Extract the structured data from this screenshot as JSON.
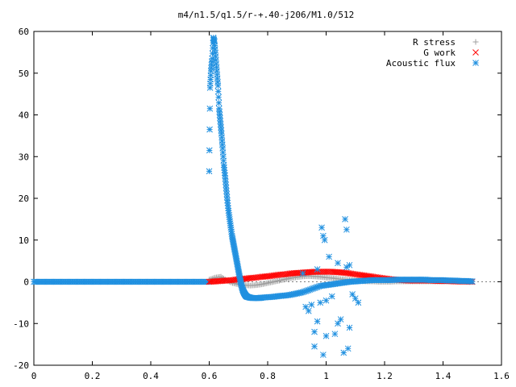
{
  "chart_data": {
    "type": "scatter",
    "title": "m4/n1.5/q1.5/r-+.40-j206/M1.0/512",
    "xlabel": "",
    "ylabel": "",
    "xlim": [
      0,
      1.6
    ],
    "ylim": [
      -20,
      60
    ],
    "xticks": [
      0,
      0.2,
      0.4,
      0.6,
      0.8,
      1,
      1.2,
      1.4,
      1.6
    ],
    "xtick_labels": [
      "0",
      "0.2",
      "0.4",
      "0.6",
      "0.8",
      "1",
      "1.2",
      "1.4",
      "1.6"
    ],
    "yticks": [
      -20,
      -10,
      0,
      10,
      20,
      30,
      40,
      50,
      60
    ],
    "ytick_labels": [
      "-20",
      "-10",
      "0",
      "10",
      "20",
      "30",
      "40",
      "50",
      "60"
    ],
    "grid": false,
    "legend": "top-right",
    "series": [
      {
        "name": "R stress",
        "marker": "plus",
        "color": "#a0a0a0",
        "x": [
          0.6,
          0.62,
          0.64,
          0.66,
          0.68,
          0.7,
          0.72,
          0.74,
          0.76,
          0.78,
          0.8,
          0.82,
          0.84,
          0.86,
          0.88,
          0.9,
          0.92,
          0.94,
          0.96,
          0.98,
          1.0,
          1.02,
          1.04,
          1.06,
          1.08,
          1.1,
          1.12,
          1.14,
          1.16,
          1.18,
          1.2,
          1.22,
          1.24,
          1.26,
          1.28,
          1.3,
          1.32,
          1.34,
          1.36,
          1.38,
          1.4,
          1.42,
          1.44,
          1.46,
          1.48,
          1.5
        ],
        "y": [
          0.5,
          1.0,
          1.2,
          0.3,
          -0.3,
          -0.6,
          -0.8,
          -0.9,
          -0.8,
          -0.6,
          -0.3,
          0.0,
          0.3,
          0.6,
          0.9,
          1.1,
          1.3,
          1.4,
          1.3,
          1.2,
          1.0,
          0.9,
          0.7,
          0.6,
          0.4,
          0.3,
          0.2,
          0.1,
          0.1,
          0.0,
          0.0,
          0.0,
          0.1,
          0.1,
          0.1,
          0.1,
          0.1,
          0.1,
          0.1,
          0.1,
          0.1,
          0.1,
          0.1,
          0.0,
          0.0,
          0.0
        ]
      },
      {
        "name": "G work",
        "marker": "cross",
        "color": "#ff0000",
        "x": [
          0.6,
          0.62,
          0.64,
          0.66,
          0.68,
          0.7,
          0.72,
          0.74,
          0.76,
          0.78,
          0.8,
          0.82,
          0.84,
          0.86,
          0.88,
          0.9,
          0.92,
          0.94,
          0.96,
          0.98,
          1.0,
          1.02,
          1.04,
          1.06,
          1.08,
          1.1,
          1.12,
          1.14,
          1.16,
          1.18,
          1.2,
          1.22,
          1.24,
          1.26,
          1.28,
          1.3,
          1.32,
          1.34,
          1.36,
          1.38,
          1.4,
          1.42,
          1.44,
          1.46,
          1.48,
          1.5
        ],
        "y": [
          0.0,
          0.1,
          0.2,
          0.3,
          0.4,
          0.6,
          0.7,
          0.9,
          1.0,
          1.2,
          1.3,
          1.5,
          1.7,
          1.8,
          2.0,
          2.1,
          2.2,
          2.3,
          2.4,
          2.4,
          2.4,
          2.4,
          2.3,
          2.2,
          2.0,
          1.8,
          1.6,
          1.4,
          1.2,
          1.0,
          0.8,
          0.6,
          0.5,
          0.4,
          0.3,
          0.3,
          0.3,
          0.3,
          0.3,
          0.2,
          0.2,
          0.2,
          0.1,
          0.1,
          0.1,
          0.0
        ]
      },
      {
        "name": "Acoustic flux",
        "marker": "star",
        "color": "#2090e0",
        "x": [
          0.6,
          0.603,
          0.606,
          0.61,
          0.614,
          0.618,
          0.622,
          0.626,
          0.63,
          0.634,
          0.638,
          0.642,
          0.646,
          0.65,
          0.654,
          0.658,
          0.662,
          0.666,
          0.67,
          0.674,
          0.678,
          0.682,
          0.686,
          0.69,
          0.694,
          0.698,
          0.702,
          0.706,
          0.71,
          0.714,
          0.718,
          0.722,
          0.726,
          0.73,
          0.74,
          0.75,
          0.76,
          0.77,
          0.78,
          0.8,
          0.82,
          0.84,
          0.86,
          0.88,
          0.9,
          0.92,
          0.94,
          0.96,
          0.98,
          1.0,
          1.02,
          1.04,
          1.06,
          1.08,
          1.1,
          1.12,
          1.14,
          1.16,
          1.18,
          1.2,
          1.22,
          1.24,
          1.26,
          1.28,
          1.3,
          1.32,
          1.34,
          1.36,
          1.38,
          1.4,
          1.42,
          1.44,
          1.46,
          1.48,
          1.5,
          0.985,
          0.99,
          0.995,
          1.065,
          1.07,
          1.075,
          0.96,
          0.97,
          1.03,
          1.04,
          1.06,
          1.08,
          0.93,
          0.94,
          0.95,
          0.98,
          1.0,
          1.02,
          1.05,
          1.09,
          1.1,
          0.92,
          0.97,
          1.01,
          1.04,
          1.07,
          1.08,
          0.99,
          1.0,
          0.96,
          1.11
        ],
        "y": [
          26.5,
          46.5,
          50.5,
          53.5,
          58.5,
          57.5,
          54.0,
          50.5,
          47.0,
          41.5,
          38.5,
          35.5,
          32.0,
          28.0,
          25.5,
          22.5,
          19.5,
          17.0,
          15.0,
          13.0,
          11.0,
          9.5,
          8.0,
          6.5,
          5.0,
          3.5,
          2.0,
          0.5,
          -0.8,
          -1.8,
          -2.5,
          -3.0,
          -3.4,
          -3.6,
          -3.8,
          -3.9,
          -3.9,
          -3.9,
          -3.8,
          -3.7,
          -3.6,
          -3.4,
          -3.3,
          -3.1,
          -2.8,
          -2.5,
          -2.0,
          -1.5,
          -1.0,
          -0.8,
          -0.6,
          -0.4,
          -0.2,
          0.0,
          0.1,
          0.2,
          0.3,
          0.4,
          0.4,
          0.4,
          0.4,
          0.5,
          0.5,
          0.5,
          0.5,
          0.5,
          0.5,
          0.4,
          0.4,
          0.4,
          0.3,
          0.3,
          0.2,
          0.2,
          0.1,
          13.0,
          11.0,
          10.0,
          15.0,
          12.5,
          -16.0,
          -12.0,
          -9.5,
          -12.5,
          -10.0,
          -17.0,
          -11.0,
          -6.0,
          -7.0,
          -5.5,
          -5.0,
          -4.5,
          -3.5,
          -9.0,
          -3.0,
          -4.0,
          2.0,
          3.0,
          6.0,
          4.5,
          3.5,
          4.0,
          -17.5,
          -13.0,
          -15.5,
          -5.0
        ]
      }
    ]
  }
}
